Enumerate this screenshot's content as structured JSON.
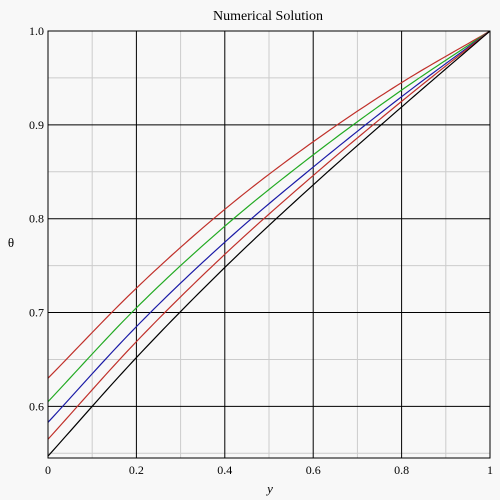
{
  "chart_data": {
    "type": "line",
    "title": "Numerical Solution",
    "xlabel": "y",
    "ylabel": "θ",
    "xlim": [
      0,
      1
    ],
    "ylim": [
      0.545,
      1.0
    ],
    "xticks": [
      0,
      0.2,
      0.4,
      0.6,
      0.8,
      1
    ],
    "xtick_labels": [
      "0",
      "0.2",
      "0.4",
      "0.6",
      "0.8",
      "1"
    ],
    "yticks": [
      0.6,
      0.7,
      0.8,
      0.9,
      1.0
    ],
    "ytick_labels": [
      "0.6",
      "0.7",
      "0.8",
      "0.9",
      "1.0"
    ],
    "grid": true,
    "background": "#f8f8f8",
    "series": [
      {
        "color": "#c0302a",
        "x": [
          0,
          0.2,
          0.4,
          0.6,
          0.8,
          1.0
        ],
        "y": [
          0.63,
          0.726,
          0.81,
          0.882,
          0.945,
          1.0
        ]
      },
      {
        "color": "#22aa22",
        "x": [
          0,
          0.2,
          0.4,
          0.6,
          0.8,
          1.0
        ],
        "y": [
          0.605,
          0.705,
          0.792,
          0.868,
          0.937,
          1.0
        ]
      },
      {
        "color": "#1a1aa6",
        "x": [
          0,
          0.2,
          0.4,
          0.6,
          0.8,
          1.0
        ],
        "y": [
          0.583,
          0.685,
          0.775,
          0.855,
          0.93,
          1.0
        ]
      },
      {
        "color": "#c0302a",
        "x": [
          0,
          0.2,
          0.4,
          0.6,
          0.8,
          1.0
        ],
        "y": [
          0.565,
          0.669,
          0.762,
          0.846,
          0.925,
          1.0
        ]
      },
      {
        "color": "#000000",
        "x": [
          0,
          0.2,
          0.4,
          0.6,
          0.8,
          1.0
        ],
        "y": [
          0.547,
          0.652,
          0.748,
          0.836,
          0.919,
          1.0
        ]
      }
    ]
  }
}
